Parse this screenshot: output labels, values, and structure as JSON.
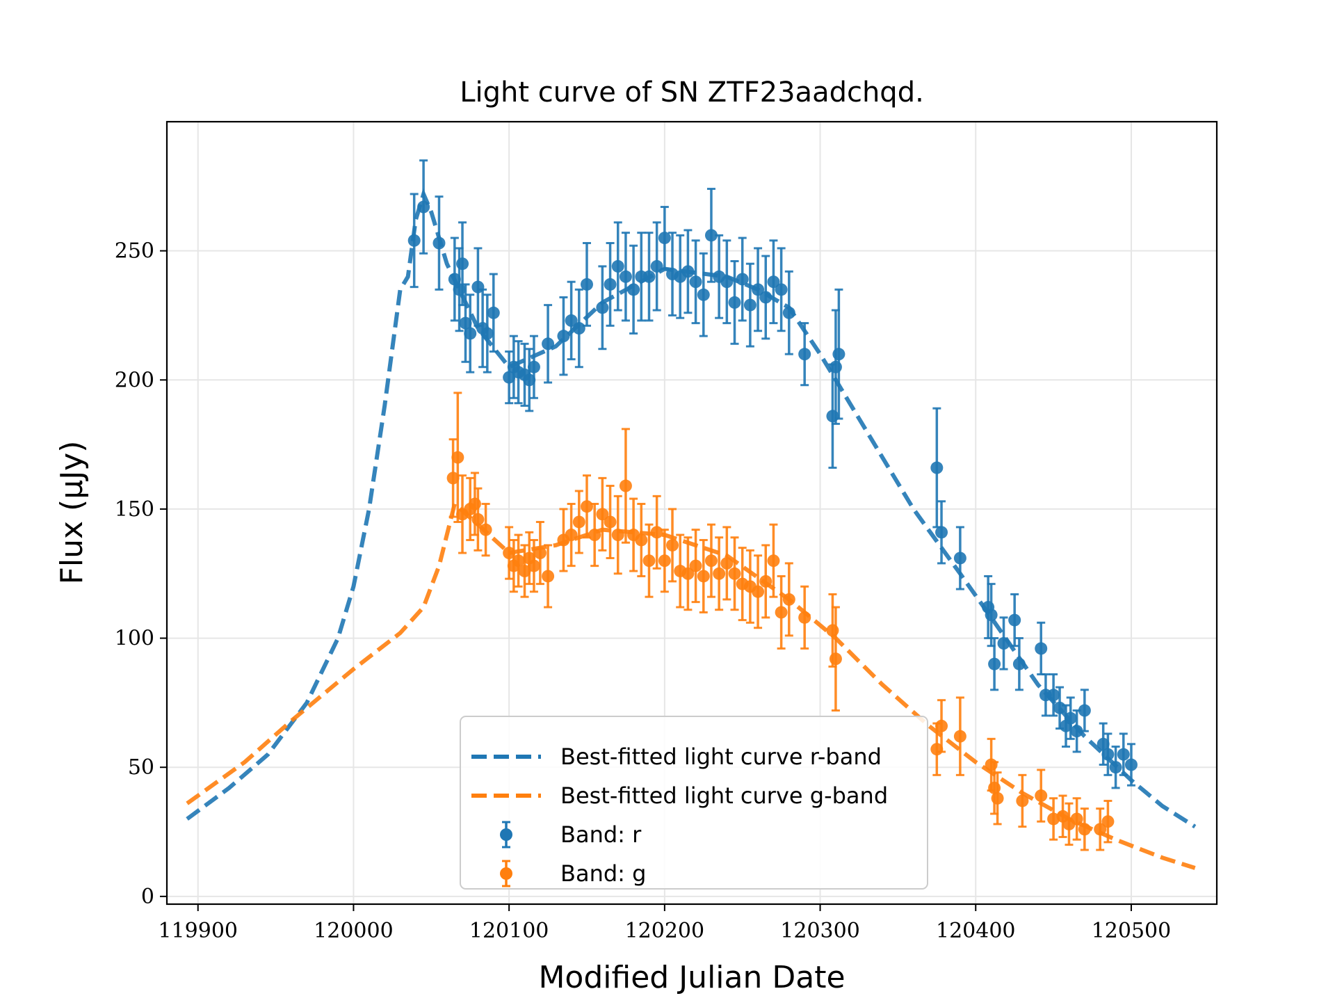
{
  "chart_data": {
    "type": "scatter",
    "title": "Light curve of SN ZTF23aadchqd.",
    "xlabel": "Modified Julian Date",
    "ylabel": "Flux (μJy)",
    "xlim": [
      119880,
      120555
    ],
    "ylim": [
      -3,
      300
    ],
    "xticks": [
      119900,
      120000,
      120100,
      120200,
      120300,
      120400,
      120500
    ],
    "yticks": [
      0,
      50,
      100,
      150,
      200,
      250
    ],
    "grid": true,
    "legend_position": "lower-center",
    "colors": {
      "r": "#1f77b4",
      "g": "#ff7f0e"
    },
    "legend": [
      {
        "label": "Best-fitted light curve r-band",
        "kind": "dashed-line",
        "series": "fit_r"
      },
      {
        "label": "Best-fitted light curve g-band",
        "kind": "dashed-line",
        "series": "fit_g"
      },
      {
        "label": "Band: r",
        "kind": "errorbar",
        "series": "band_r"
      },
      {
        "label": "Band: g",
        "kind": "errorbar",
        "series": "band_g"
      }
    ],
    "series": [
      {
        "name": "Best-fitted light curve r-band",
        "id": "fit_r",
        "kind": "line",
        "color": "#1f77b4",
        "x": [
          119893,
          119920,
          119945,
          119970,
          119990,
          120000,
          120010,
          120020,
          120030,
          120035,
          120040,
          120045,
          120050,
          120060,
          120080,
          120100,
          120130,
          120160,
          120200,
          120240,
          120260,
          120280,
          120300,
          120330,
          120360,
          120390,
          120410,
          120440,
          120470,
          120500,
          120520,
          120541
        ],
        "y": [
          30,
          42,
          55,
          75,
          100,
          120,
          150,
          190,
          235,
          240,
          262,
          272,
          265,
          245,
          220,
          205,
          213,
          230,
          243,
          240,
          235,
          228,
          210,
          180,
          150,
          125,
          108,
          82,
          62,
          45,
          35,
          27
        ]
      },
      {
        "name": "Best-fitted light curve g-band",
        "id": "fit_g",
        "kind": "line",
        "color": "#ff7f0e",
        "x": [
          119893,
          119930,
          119960,
          120000,
          120030,
          120045,
          120055,
          120065,
          120080,
          120100,
          120130,
          120160,
          120200,
          120240,
          120280,
          120310,
          120340,
          120370,
          120400,
          120430,
          120460,
          120490,
          120520,
          120541
        ],
        "y": [
          36,
          52,
          68,
          88,
          102,
          112,
          128,
          152,
          144,
          133,
          136,
          142,
          140,
          132,
          115,
          100,
          82,
          66,
          52,
          40,
          30,
          22,
          15,
          11
        ]
      },
      {
        "name": "Band: r",
        "id": "band_r",
        "kind": "errorbar",
        "color": "#1f77b4",
        "x": [
          120039,
          120045,
          120055,
          120065,
          120068,
          120070,
          120072,
          120075,
          120080,
          120083,
          120086,
          120090,
          120100,
          120103,
          120106,
          120110,
          120113,
          120116,
          120125,
          120135,
          120140,
          120145,
          120150,
          120160,
          120165,
          120170,
          120175,
          120180,
          120185,
          120190,
          120195,
          120200,
          120205,
          120210,
          120215,
          120220,
          120225,
          120230,
          120235,
          120240,
          120245,
          120250,
          120255,
          120260,
          120265,
          120270,
          120275,
          120280,
          120290,
          120308,
          120310,
          120312,
          120375,
          120378,
          120390,
          120408,
          120410,
          120412,
          120418,
          120425,
          120428,
          120442,
          120445,
          120450,
          120454,
          120458,
          120461,
          120465,
          120470,
          120482,
          120485,
          120490,
          120495,
          120500
        ],
        "y": [
          254,
          267,
          253,
          239,
          235,
          245,
          222,
          218,
          236,
          220,
          218,
          226,
          201,
          205,
          203,
          202,
          200,
          205,
          214,
          217,
          223,
          220,
          237,
          228,
          237,
          244,
          240,
          235,
          240,
          240,
          244,
          255,
          241,
          240,
          242,
          238,
          233,
          256,
          240,
          238,
          230,
          239,
          229,
          235,
          232,
          238,
          235,
          226,
          210,
          186,
          205,
          210,
          166,
          141,
          131,
          112,
          109,
          90,
          98,
          107,
          90,
          96,
          78,
          78,
          73,
          66,
          69,
          64,
          72,
          59,
          55,
          50,
          55,
          51
        ],
        "err": [
          18,
          18,
          18,
          16,
          16,
          16,
          15,
          15,
          15,
          15,
          15,
          15,
          10,
          12,
          12,
          12,
          12,
          12,
          15,
          15,
          15,
          15,
          16,
          16,
          16,
          17,
          17,
          17,
          17,
          17,
          17,
          12,
          16,
          16,
          16,
          16,
          16,
          18,
          16,
          16,
          16,
          16,
          16,
          16,
          16,
          16,
          16,
          16,
          12,
          20,
          22,
          25,
          23,
          12,
          12,
          12,
          12,
          10,
          10,
          10,
          10,
          10,
          8,
          8,
          8,
          8,
          8,
          8,
          8,
          8,
          8,
          8,
          8,
          8
        ]
      },
      {
        "name": "Band: g",
        "id": "band_g",
        "kind": "errorbar",
        "color": "#ff7f0e",
        "x": [
          120064,
          120067,
          120070,
          120075,
          120078,
          120080,
          120085,
          120100,
          120103,
          120106,
          120110,
          120113,
          120116,
          120120,
          120125,
          120135,
          120140,
          120145,
          120150,
          120155,
          120160,
          120165,
          120170,
          120175,
          120180,
          120185,
          120190,
          120195,
          120200,
          120205,
          120210,
          120215,
          120220,
          120225,
          120230,
          120235,
          120240,
          120245,
          120250,
          120255,
          120260,
          120265,
          120270,
          120275,
          120280,
          120290,
          120308,
          120310,
          120375,
          120378,
          120390,
          120410,
          120412,
          120414,
          120430,
          120442,
          120450,
          120456,
          120460,
          120465,
          120470,
          120480,
          120485
        ],
        "y": [
          162,
          170,
          148,
          150,
          152,
          146,
          142,
          133,
          128,
          130,
          126,
          131,
          128,
          133,
          124,
          138,
          140,
          145,
          151,
          140,
          148,
          145,
          140,
          159,
          140,
          138,
          130,
          141,
          130,
          136,
          126,
          125,
          128,
          124,
          130,
          125,
          129,
          125,
          121,
          120,
          118,
          122,
          130,
          110,
          115,
          108,
          103,
          92,
          57,
          66,
          62,
          51,
          42,
          38,
          37,
          39,
          30,
          31,
          28,
          30,
          26,
          26,
          29
        ],
        "err": [
          15,
          25,
          15,
          12,
          12,
          12,
          10,
          10,
          10,
          10,
          10,
          10,
          10,
          12,
          12,
          12,
          12,
          12,
          12,
          12,
          14,
          14,
          15,
          22,
          14,
          14,
          14,
          14,
          12,
          14,
          14,
          14,
          14,
          14,
          14,
          14,
          14,
          14,
          14,
          14,
          14,
          14,
          14,
          14,
          14,
          12,
          14,
          20,
          10,
          10,
          15,
          10,
          10,
          10,
          10,
          10,
          8,
          8,
          8,
          8,
          8,
          8,
          8
        ]
      }
    ]
  }
}
